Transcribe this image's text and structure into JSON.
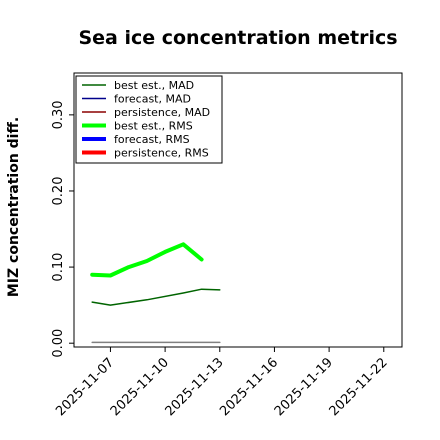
{
  "chart_data": {
    "type": "line",
    "title": "Sea ice concentration metrics",
    "xlabel": "",
    "ylabel": "MIZ concentration diff.",
    "x_axis_type": "date",
    "x_ticks": [
      "2025-11-07",
      "2025-11-10",
      "2025-11-13",
      "2025-11-16",
      "2025-11-19",
      "2025-11-22"
    ],
    "highlighted_x_tick": "2025-11-13",
    "highlight_color": "#228b22",
    "xlim": [
      "2025-11-05",
      "2025-11-23"
    ],
    "y_ticks": [
      "0.00",
      "0.10",
      "0.20",
      "0.30"
    ],
    "ylim": [
      -0.005,
      0.355
    ],
    "grid": false,
    "legend_position": "top-left",
    "series": [
      {
        "name": "best est., MAD",
        "color": "#006400",
        "style": "thin",
        "points": [
          [
            "2025-11-06",
            0.054
          ],
          [
            "2025-11-07",
            0.05
          ],
          [
            "2025-11-09",
            0.057
          ],
          [
            "2025-11-11",
            0.066
          ],
          [
            "2025-11-12",
            0.071
          ],
          [
            "2025-11-13",
            0.07
          ]
        ]
      },
      {
        "name": "forecast, MAD",
        "color": "#00008b",
        "style": "thin",
        "points": []
      },
      {
        "name": "persistence, MAD",
        "color": "#8b0000",
        "style": "thin",
        "points": []
      },
      {
        "name": "best est., RMS",
        "color": "#00ff00",
        "style": "thick",
        "points": [
          [
            "2025-11-06",
            0.09
          ],
          [
            "2025-11-07",
            0.089
          ],
          [
            "2025-11-08",
            0.1
          ],
          [
            "2025-11-09",
            0.108
          ],
          [
            "2025-11-10",
            0.12
          ],
          [
            "2025-11-11",
            0.13
          ],
          [
            "2025-11-12",
            0.11
          ]
        ]
      },
      {
        "name": "forecast, RMS",
        "color": "#0000ff",
        "style": "thick",
        "points": []
      },
      {
        "name": "persistence, RMS",
        "color": "#ff0000",
        "style": "thick",
        "points": []
      },
      {
        "name": "",
        "color": "#808080",
        "style": "thin",
        "points": [
          [
            "2025-11-06",
            0.001
          ],
          [
            "2025-11-13",
            0.001
          ]
        ]
      }
    ]
  }
}
